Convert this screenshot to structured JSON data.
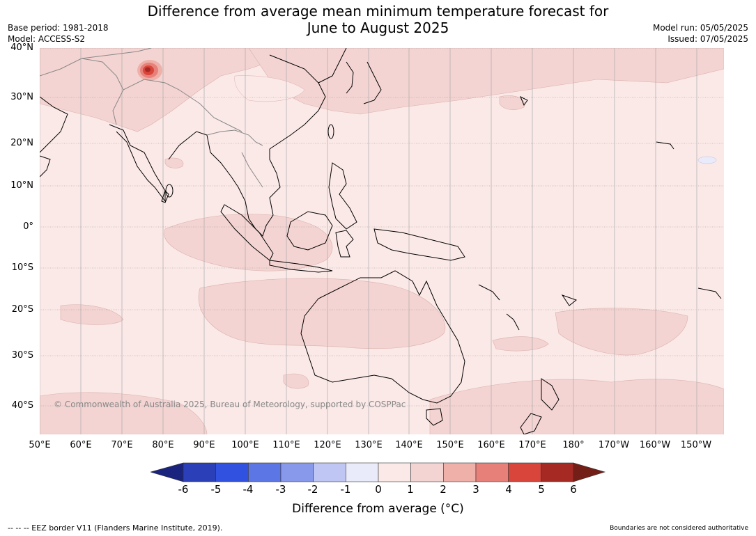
{
  "title": {
    "line1": "Difference from average mean minimum temperature forecast for",
    "line2": "June to August 2025"
  },
  "meta": {
    "base_period": "Base period: 1981-2018",
    "model": "Model: ACCESS-S2",
    "model_run": "Model run: 05/05/2025",
    "issued": "Issued: 07/05/2025"
  },
  "map": {
    "lat_labels": [
      "40°N",
      "30°N",
      "20°N",
      "10°N",
      "0°",
      "10°S",
      "20°S",
      "30°S",
      "40°S"
    ],
    "lon_labels": [
      "50°E",
      "60°E",
      "70°E",
      "80°E",
      "90°E",
      "100°E",
      "110°E",
      "120°E",
      "130°E",
      "140°E",
      "150°E",
      "160°E",
      "170°E",
      "180°",
      "170°W",
      "160°W",
      "150°W"
    ],
    "copyright": "© Commonwealth of Australia 2025, Bureau of Meteorology, supported by COSPPac",
    "colors": {
      "ocean_fill": "#fbe9e7",
      "land_anomaly": "#f3d4d2",
      "hotspot": "#d73b2f"
    }
  },
  "colorbar": {
    "ticks": [
      "-6",
      "-5",
      "-4",
      "-3",
      "-2",
      "-1",
      "0",
      "1",
      "2",
      "3",
      "4",
      "5",
      "6"
    ],
    "colors": [
      "#1a237e",
      "#2a3fb8",
      "#3152e0",
      "#5c76e6",
      "#8898ea",
      "#bfc6f3",
      "#eaebfa",
      "#fbe9e7",
      "#f3d4d2",
      "#eeb0a9",
      "#e78079",
      "#d9453a",
      "#a72924",
      "#731e16"
    ],
    "title": "Difference from average (°C)"
  },
  "footer": {
    "eez": "--  --  -- EEZ border V11 (Flanders Marine Institute, 2019).",
    "boundaries": "Boundaries are not considered authoritative"
  }
}
